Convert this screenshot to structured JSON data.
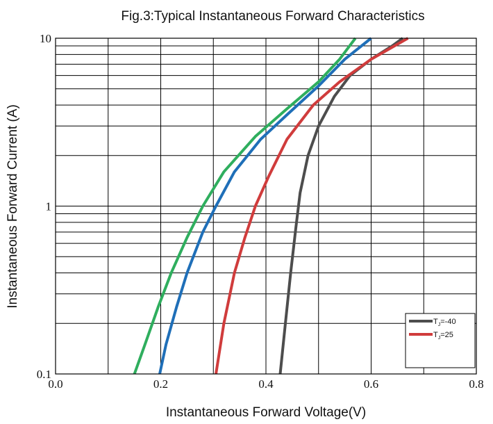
{
  "chart_data": {
    "type": "line",
    "title": "Fig.3:Typical Instantaneous Forward Characteristics",
    "xlabel": "Instantaneous Forward Voltage(V)",
    "ylabel": "Instantaneous Forward Current (A)",
    "xlim": [
      0,
      0.8
    ],
    "ylim": [
      0.1,
      10
    ],
    "yscale": "log",
    "grid": true,
    "x_tick_labels": [
      "0.0",
      "0.2",
      "0.4",
      "0.6",
      "0.8"
    ],
    "y_tick_labels": [
      "0.1",
      "1",
      "10"
    ],
    "legend_placement": "bottom-right",
    "series": [
      {
        "name": "TJ=-40",
        "legend_main": "T",
        "legend_sub": "J",
        "legend_rest": "=-40",
        "color": "#4d4d4d",
        "points": [
          [
            0.427,
            0.1
          ],
          [
            0.437,
            0.2
          ],
          [
            0.447,
            0.4
          ],
          [
            0.457,
            0.75
          ],
          [
            0.465,
            1.2
          ],
          [
            0.48,
            2
          ],
          [
            0.5,
            3
          ],
          [
            0.53,
            4.5
          ],
          [
            0.56,
            6
          ],
          [
            0.6,
            7.5
          ],
          [
            0.64,
            9
          ],
          [
            0.66,
            10
          ]
        ]
      },
      {
        "name": "TJ=25",
        "legend_main": "T",
        "legend_sub": "J",
        "legend_rest": "=25",
        "color": "#d03c3c",
        "points": [
          [
            0.305,
            0.1
          ],
          [
            0.32,
            0.2
          ],
          [
            0.34,
            0.4
          ],
          [
            0.36,
            0.65
          ],
          [
            0.38,
            1
          ],
          [
            0.405,
            1.5
          ],
          [
            0.44,
            2.5
          ],
          [
            0.49,
            4
          ],
          [
            0.54,
            5.5
          ],
          [
            0.6,
            7.5
          ],
          [
            0.67,
            10
          ]
        ]
      },
      {
        "color": "#1f6fb8",
        "points": [
          [
            0.198,
            0.1
          ],
          [
            0.21,
            0.15
          ],
          [
            0.23,
            0.25
          ],
          [
            0.25,
            0.4
          ],
          [
            0.28,
            0.7
          ],
          [
            0.305,
            1
          ],
          [
            0.34,
            1.6
          ],
          [
            0.39,
            2.5
          ],
          [
            0.44,
            3.5
          ],
          [
            0.5,
            5.2
          ],
          [
            0.55,
            7.5
          ],
          [
            0.6,
            10
          ]
        ]
      },
      {
        "color": "#2fae5e",
        "points": [
          [
            0.15,
            0.1
          ],
          [
            0.17,
            0.15
          ],
          [
            0.195,
            0.25
          ],
          [
            0.22,
            0.4
          ],
          [
            0.25,
            0.65
          ],
          [
            0.28,
            1
          ],
          [
            0.32,
            1.6
          ],
          [
            0.38,
            2.6
          ],
          [
            0.44,
            3.8
          ],
          [
            0.5,
            5.5
          ],
          [
            0.54,
            7.5
          ],
          [
            0.57,
            10
          ]
        ]
      }
    ]
  }
}
